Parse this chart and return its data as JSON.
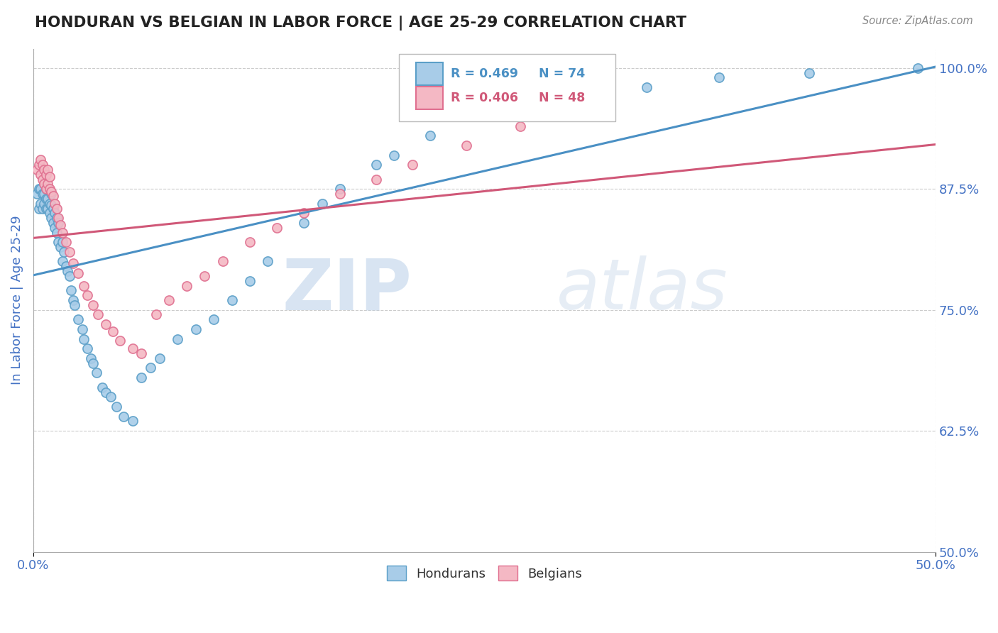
{
  "title": "HONDURAN VS BELGIAN IN LABOR FORCE | AGE 25-29 CORRELATION CHART",
  "source_text": "Source: ZipAtlas.com",
  "ylabel": "In Labor Force | Age 25-29",
  "xlim": [
    0.0,
    0.5
  ],
  "ylim": [
    0.5,
    1.02
  ],
  "xtick_positions": [
    0.0,
    0.5
  ],
  "xtick_labels": [
    "0.0%",
    "50.0%"
  ],
  "ytick_values": [
    0.5,
    0.625,
    0.75,
    0.875,
    1.0
  ],
  "ytick_labels": [
    "50.0%",
    "62.5%",
    "75.0%",
    "87.5%",
    "100.0%"
  ],
  "honduran_color": "#a8cce8",
  "honduran_edge": "#5b9fc8",
  "belgian_color": "#f4b8c4",
  "belgian_edge": "#e07090",
  "trend_honduran_color": "#4a90c4",
  "trend_belgian_color": "#d05878",
  "legend_label_honduran": "Hondurans",
  "legend_label_belgian": "Belgians",
  "legend_r_honduran": "R = 0.469",
  "legend_n_honduran": "N = 74",
  "legend_r_belgian": "R = 0.406",
  "legend_n_belgian": "N = 48",
  "watermark_zip": "ZIP",
  "watermark_atlas": "atlas",
  "watermark_color": "#d0dff0",
  "background_color": "#ffffff",
  "grid_color": "#cccccc",
  "title_color": "#222222",
  "tick_color": "#4472c4",
  "honduran_x": [
    0.002,
    0.003,
    0.003,
    0.004,
    0.004,
    0.005,
    0.005,
    0.006,
    0.006,
    0.006,
    0.007,
    0.007,
    0.007,
    0.008,
    0.008,
    0.008,
    0.009,
    0.009,
    0.01,
    0.01,
    0.01,
    0.011,
    0.011,
    0.012,
    0.012,
    0.013,
    0.013,
    0.014,
    0.014,
    0.015,
    0.016,
    0.016,
    0.017,
    0.018,
    0.019,
    0.02,
    0.021,
    0.022,
    0.023,
    0.025,
    0.027,
    0.028,
    0.03,
    0.032,
    0.033,
    0.035,
    0.038,
    0.04,
    0.043,
    0.046,
    0.05,
    0.055,
    0.06,
    0.065,
    0.07,
    0.08,
    0.09,
    0.1,
    0.11,
    0.12,
    0.13,
    0.15,
    0.16,
    0.17,
    0.19,
    0.2,
    0.22,
    0.24,
    0.26,
    0.3,
    0.34,
    0.38,
    0.43,
    0.49
  ],
  "honduran_y": [
    0.87,
    0.855,
    0.875,
    0.86,
    0.875,
    0.855,
    0.87,
    0.86,
    0.87,
    0.88,
    0.855,
    0.865,
    0.875,
    0.855,
    0.865,
    0.875,
    0.85,
    0.86,
    0.845,
    0.858,
    0.87,
    0.84,
    0.855,
    0.835,
    0.85,
    0.83,
    0.845,
    0.82,
    0.84,
    0.815,
    0.8,
    0.82,
    0.81,
    0.795,
    0.79,
    0.785,
    0.77,
    0.76,
    0.755,
    0.74,
    0.73,
    0.72,
    0.71,
    0.7,
    0.695,
    0.685,
    0.67,
    0.665,
    0.66,
    0.65,
    0.64,
    0.635,
    0.68,
    0.69,
    0.7,
    0.72,
    0.73,
    0.74,
    0.76,
    0.78,
    0.8,
    0.84,
    0.86,
    0.875,
    0.9,
    0.91,
    0.93,
    0.95,
    0.96,
    0.97,
    0.98,
    0.99,
    0.995,
    1.0
  ],
  "belgian_x": [
    0.002,
    0.003,
    0.004,
    0.004,
    0.005,
    0.005,
    0.006,
    0.006,
    0.007,
    0.007,
    0.008,
    0.008,
    0.009,
    0.009,
    0.01,
    0.011,
    0.012,
    0.013,
    0.014,
    0.015,
    0.016,
    0.018,
    0.02,
    0.022,
    0.025,
    0.028,
    0.03,
    0.033,
    0.036,
    0.04,
    0.044,
    0.048,
    0.055,
    0.06,
    0.068,
    0.075,
    0.085,
    0.095,
    0.105,
    0.12,
    0.135,
    0.15,
    0.17,
    0.19,
    0.21,
    0.24,
    0.27,
    0.31
  ],
  "belgian_y": [
    0.895,
    0.9,
    0.89,
    0.905,
    0.885,
    0.9,
    0.88,
    0.895,
    0.875,
    0.89,
    0.88,
    0.895,
    0.875,
    0.888,
    0.872,
    0.868,
    0.86,
    0.855,
    0.845,
    0.838,
    0.83,
    0.82,
    0.81,
    0.798,
    0.788,
    0.775,
    0.765,
    0.755,
    0.745,
    0.735,
    0.728,
    0.718,
    0.71,
    0.705,
    0.745,
    0.76,
    0.775,
    0.785,
    0.8,
    0.82,
    0.835,
    0.85,
    0.87,
    0.885,
    0.9,
    0.92,
    0.94,
    0.96
  ]
}
